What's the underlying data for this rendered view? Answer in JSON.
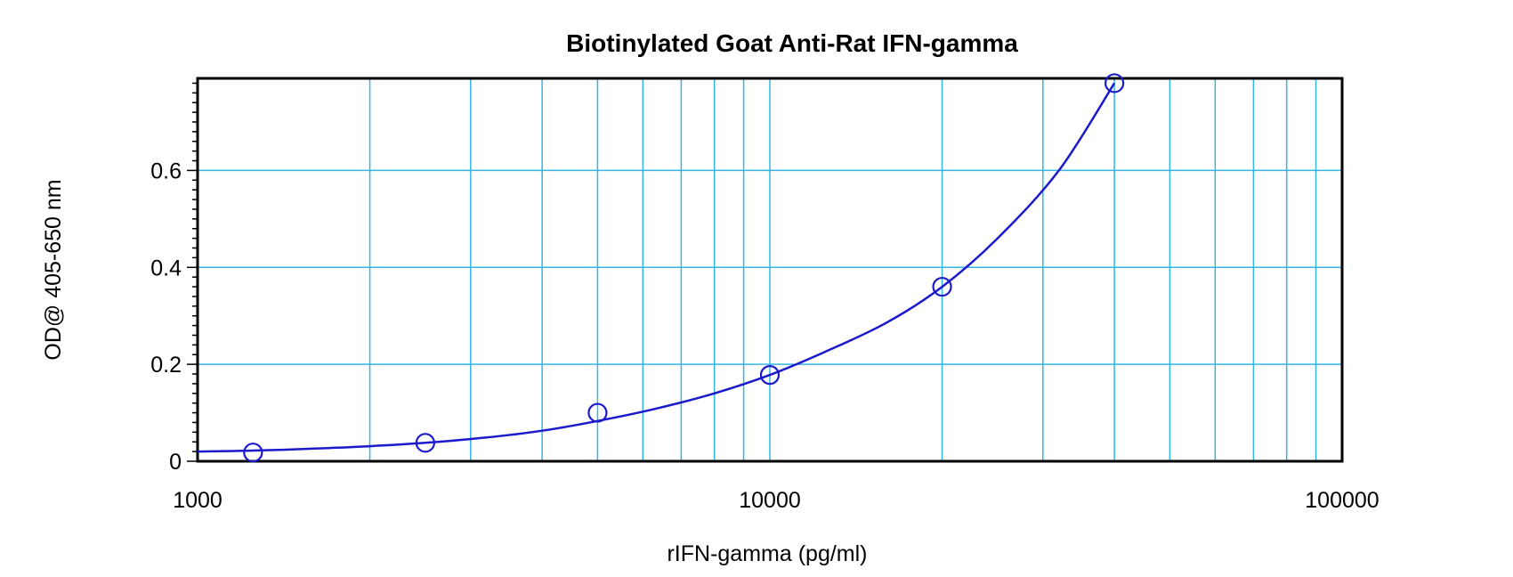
{
  "chart_data": {
    "type": "scatter",
    "title": "Biotinylated Goat Anti-Rat IFN-gamma",
    "xlabel": "rIFN-gamma (pg/ml)",
    "ylabel": "OD@ 405-650 nm",
    "x_scale": "log",
    "xlim": [
      1000,
      100000
    ],
    "ylim": [
      0,
      0.79
    ],
    "x_ticks": [
      "1000",
      "10000",
      "100000"
    ],
    "y_ticks": [
      "0",
      "0.2",
      "0.4",
      "0.6"
    ],
    "grid": true,
    "legend": "none",
    "series": [
      {
        "marker": "open-circle",
        "x": [
          1250,
          2500,
          5000,
          10000,
          20000,
          40000
        ],
        "y": [
          0.018,
          0.038,
          0.1,
          0.178,
          0.36,
          0.78
        ]
      }
    ],
    "fit_curve": {
      "x": [
        1000,
        1250,
        1600,
        2000,
        2500,
        3200,
        4000,
        5000,
        6300,
        8000,
        10000,
        12500,
        16000,
        20000,
        25000,
        32000,
        40000
      ],
      "y": [
        0.02,
        0.022,
        0.026,
        0.031,
        0.038,
        0.049,
        0.063,
        0.083,
        0.108,
        0.14,
        0.178,
        0.226,
        0.286,
        0.36,
        0.46,
        0.6,
        0.78
      ]
    },
    "colors": {
      "series": "#1a1acc",
      "grid": "#33b5e5",
      "axis": "#000000"
    }
  }
}
